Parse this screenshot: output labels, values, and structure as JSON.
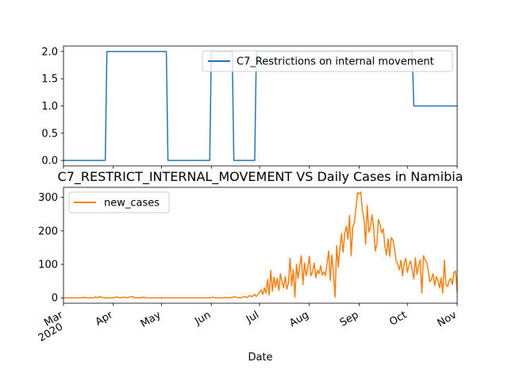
{
  "chart_data": [
    {
      "type": "line",
      "x_start": "2020-03-01",
      "x_end": "2020-11-01",
      "ylim": [
        -0.1,
        2.1
      ],
      "yticks": [
        0.0,
        0.5,
        1.0,
        1.5,
        2.0
      ],
      "ytick_labels": [
        "0.0",
        "0.5",
        "1.0",
        "1.5",
        "2.0"
      ],
      "show_xtick_labels": false,
      "legend_location": "upper-right",
      "series": [
        {
          "name": "C7_Restrictions on internal movement",
          "color": "#1f77b4",
          "points": [
            [
              "2020-03-01",
              0
            ],
            [
              "2020-03-27",
              0
            ],
            [
              "2020-03-28",
              2
            ],
            [
              "2020-05-04",
              2
            ],
            [
              "2020-05-05",
              0
            ],
            [
              "2020-05-31",
              0
            ],
            [
              "2020-06-01",
              2
            ],
            [
              "2020-06-14",
              2
            ],
            [
              "2020-06-15",
              0
            ],
            [
              "2020-06-28",
              0
            ],
            [
              "2020-06-29",
              2
            ],
            [
              "2020-10-04",
              2
            ],
            [
              "2020-10-05",
              1
            ],
            [
              "2020-11-01",
              1
            ]
          ]
        }
      ]
    },
    {
      "type": "line",
      "title": "C7_RESTRICT_INTERNAL_MOVEMENT VS Daily Cases in Namibia",
      "x_start": "2020-03-01",
      "x_end": "2020-11-01",
      "xlabel": "Date",
      "ylim": [
        -16,
        330
      ],
      "yticks": [
        0,
        100,
        200,
        300
      ],
      "ytick_labels": [
        "0",
        "100",
        "200",
        "300"
      ],
      "xticks": [
        {
          "date": "2020-03-01",
          "label": "Mar",
          "sublabel": "2020"
        },
        {
          "date": "2020-04-01",
          "label": "Apr"
        },
        {
          "date": "2020-05-01",
          "label": "May"
        },
        {
          "date": "2020-06-01",
          "label": "Jun"
        },
        {
          "date": "2020-07-01",
          "label": "Jul"
        },
        {
          "date": "2020-08-01",
          "label": "Aug"
        },
        {
          "date": "2020-09-01",
          "label": "Sep"
        },
        {
          "date": "2020-10-01",
          "label": "Oct"
        },
        {
          "date": "2020-11-01",
          "label": "Nov"
        }
      ],
      "legend_location": "upper-left",
      "series": [
        {
          "name": "new_cases",
          "color": "#ff7f0e",
          "points": [
            [
              "2020-03-01",
              0
            ],
            [
              "2020-03-13",
              0
            ],
            [
              "2020-03-14",
              2
            ],
            [
              "2020-03-15",
              0
            ],
            [
              "2020-03-20",
              0
            ],
            [
              "2020-03-21",
              3
            ],
            [
              "2020-03-22",
              0
            ],
            [
              "2020-03-24",
              4
            ],
            [
              "2020-03-25",
              1
            ],
            [
              "2020-03-27",
              0
            ],
            [
              "2020-04-01",
              0
            ],
            [
              "2020-04-03",
              3
            ],
            [
              "2020-04-05",
              0
            ],
            [
              "2020-04-08",
              2
            ],
            [
              "2020-04-09",
              0
            ],
            [
              "2020-04-13",
              4
            ],
            [
              "2020-04-14",
              0
            ],
            [
              "2020-04-18",
              0
            ],
            [
              "2020-04-20",
              2
            ],
            [
              "2020-04-21",
              0
            ],
            [
              "2020-05-10",
              0
            ],
            [
              "2020-05-31",
              0
            ],
            [
              "2020-06-02",
              2
            ],
            [
              "2020-06-03",
              0
            ],
            [
              "2020-06-08",
              0
            ],
            [
              "2020-06-10",
              1
            ],
            [
              "2020-06-12",
              0
            ],
            [
              "2020-06-16",
              3
            ],
            [
              "2020-06-17",
              1
            ],
            [
              "2020-06-19",
              0
            ],
            [
              "2020-06-22",
              4
            ],
            [
              "2020-06-23",
              1
            ],
            [
              "2020-06-25",
              7
            ],
            [
              "2020-06-26",
              3
            ],
            [
              "2020-06-28",
              10
            ],
            [
              "2020-06-29",
              4
            ],
            [
              "2020-07-01",
              16
            ],
            [
              "2020-07-02",
              24
            ],
            [
              "2020-07-03",
              10
            ],
            [
              "2020-07-04",
              30
            ],
            [
              "2020-07-05",
              14
            ],
            [
              "2020-07-06",
              55
            ],
            [
              "2020-07-07",
              8
            ],
            [
              "2020-07-08",
              82
            ],
            [
              "2020-07-09",
              20
            ],
            [
              "2020-07-10",
              62
            ],
            [
              "2020-07-11",
              32
            ],
            [
              "2020-07-12",
              58
            ],
            [
              "2020-07-13",
              22
            ],
            [
              "2020-07-14",
              72
            ],
            [
              "2020-07-15",
              48
            ],
            [
              "2020-07-16",
              30
            ],
            [
              "2020-07-17",
              64
            ],
            [
              "2020-07-18",
              26
            ],
            [
              "2020-07-19",
              44
            ],
            [
              "2020-07-20",
              118
            ],
            [
              "2020-07-21",
              36
            ],
            [
              "2020-07-22",
              84
            ],
            [
              "2020-07-23",
              2
            ],
            [
              "2020-07-24",
              100
            ],
            [
              "2020-07-25",
              58
            ],
            [
              "2020-07-26",
              94
            ],
            [
              "2020-07-27",
              126
            ],
            [
              "2020-07-28",
              40
            ],
            [
              "2020-07-29",
              104
            ],
            [
              "2020-07-30",
              66
            ],
            [
              "2020-07-31",
              88
            ],
            [
              "2020-08-01",
              124
            ],
            [
              "2020-08-02",
              66
            ],
            [
              "2020-08-03",
              78
            ],
            [
              "2020-08-04",
              104
            ],
            [
              "2020-08-05",
              60
            ],
            [
              "2020-08-06",
              82
            ],
            [
              "2020-08-07",
              72
            ],
            [
              "2020-08-08",
              96
            ],
            [
              "2020-08-09",
              68
            ],
            [
              "2020-08-10",
              78
            ],
            [
              "2020-08-11",
              66
            ],
            [
              "2020-08-12",
              102
            ],
            [
              "2020-08-13",
              140
            ],
            [
              "2020-08-14",
              52
            ],
            [
              "2020-08-15",
              128
            ],
            [
              "2020-08-16",
              72
            ],
            [
              "2020-08-17",
              2
            ],
            [
              "2020-08-18",
              156
            ],
            [
              "2020-08-19",
              92
            ],
            [
              "2020-08-20",
              148
            ],
            [
              "2020-08-21",
              192
            ],
            [
              "2020-08-22",
              136
            ],
            [
              "2020-08-23",
              192
            ],
            [
              "2020-08-24",
              214
            ],
            [
              "2020-08-25",
              175
            ],
            [
              "2020-08-26",
              246
            ],
            [
              "2020-08-27",
              126
            ],
            [
              "2020-08-28",
              212
            ],
            [
              "2020-08-29",
              224
            ],
            [
              "2020-08-30",
              268
            ],
            [
              "2020-08-31",
              314
            ],
            [
              "2020-09-01",
              310
            ],
            [
              "2020-09-02",
              316
            ],
            [
              "2020-09-03",
              260
            ],
            [
              "2020-09-04",
              236
            ],
            [
              "2020-09-05",
              160
            ],
            [
              "2020-09-06",
              276
            ],
            [
              "2020-09-07",
              196
            ],
            [
              "2020-09-08",
              212
            ],
            [
              "2020-09-09",
              248
            ],
            [
              "2020-09-10",
              210
            ],
            [
              "2020-09-11",
              140
            ],
            [
              "2020-09-12",
              160
            ],
            [
              "2020-09-13",
              234
            ],
            [
              "2020-09-14",
              218
            ],
            [
              "2020-09-15",
              194
            ],
            [
              "2020-09-16",
              206
            ],
            [
              "2020-09-17",
              154
            ],
            [
              "2020-09-18",
              128
            ],
            [
              "2020-09-19",
              176
            ],
            [
              "2020-09-20",
              124
            ],
            [
              "2020-09-21",
              180
            ],
            [
              "2020-09-22",
              172
            ],
            [
              "2020-09-23",
              146
            ],
            [
              "2020-09-24",
              110
            ],
            [
              "2020-09-25",
              100
            ],
            [
              "2020-09-26",
              84
            ],
            [
              "2020-09-27",
              112
            ],
            [
              "2020-09-28",
              66
            ],
            [
              "2020-09-29",
              104
            ],
            [
              "2020-09-30",
              118
            ],
            [
              "2020-10-01",
              76
            ],
            [
              "2020-10-02",
              98
            ],
            [
              "2020-10-03",
              110
            ],
            [
              "2020-10-04",
              84
            ],
            [
              "2020-10-05",
              56
            ],
            [
              "2020-10-06",
              120
            ],
            [
              "2020-10-07",
              70
            ],
            [
              "2020-10-08",
              96
            ],
            [
              "2020-10-09",
              114
            ],
            [
              "2020-10-10",
              14
            ],
            [
              "2020-10-11",
              126
            ],
            [
              "2020-10-12",
              114
            ],
            [
              "2020-10-13",
              106
            ],
            [
              "2020-10-14",
              80
            ],
            [
              "2020-10-15",
              48
            ],
            [
              "2020-10-16",
              56
            ],
            [
              "2020-10-17",
              72
            ],
            [
              "2020-10-18",
              36
            ],
            [
              "2020-10-19",
              64
            ],
            [
              "2020-10-20",
              52
            ],
            [
              "2020-10-21",
              30
            ],
            [
              "2020-10-22",
              60
            ],
            [
              "2020-10-23",
              14
            ],
            [
              "2020-10-24",
              112
            ],
            [
              "2020-10-25",
              40
            ],
            [
              "2020-10-26",
              34
            ],
            [
              "2020-10-27",
              52
            ],
            [
              "2020-10-28",
              58
            ],
            [
              "2020-10-29",
              40
            ],
            [
              "2020-10-30",
              76
            ],
            [
              "2020-10-31",
              80
            ],
            [
              "2020-11-01",
              18
            ]
          ]
        }
      ]
    }
  ]
}
